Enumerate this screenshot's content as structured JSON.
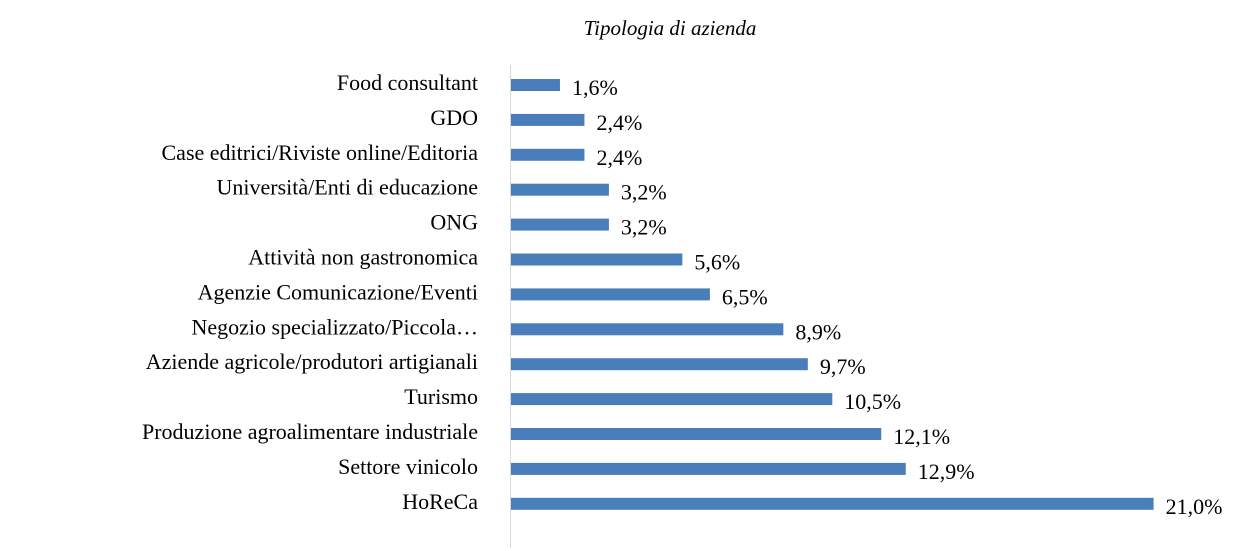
{
  "chart_data": {
    "type": "bar",
    "orientation": "horizontal",
    "title": "Tipologia di azienda",
    "categories": [
      "Food consultant",
      "GDO",
      "Case editrici/Riviste online/Editoria",
      "Università/Enti di educazione",
      "ONG",
      "Attività non gastronomica",
      "Agenzie Comunicazione/Eventi",
      "Negozio specializzato/Piccola…",
      "Aziende agricole/produtori artigianali",
      "Turismo",
      "Produzione agroalimentare industriale",
      "Settore vinicolo",
      "HoReCa"
    ],
    "values": [
      1.6,
      2.4,
      2.4,
      3.2,
      3.2,
      5.6,
      6.5,
      8.9,
      9.7,
      10.5,
      12.1,
      12.9,
      21.0
    ],
    "value_labels": [
      "1,6%",
      "2,4%",
      "2,4%",
      "3,2%",
      "3,2%",
      "5,6%",
      "6,5%",
      "8,9%",
      "9,7%",
      "10,5%",
      "12,1%",
      "12,9%",
      "21,0%"
    ],
    "color": "#4a7ebb"
  }
}
